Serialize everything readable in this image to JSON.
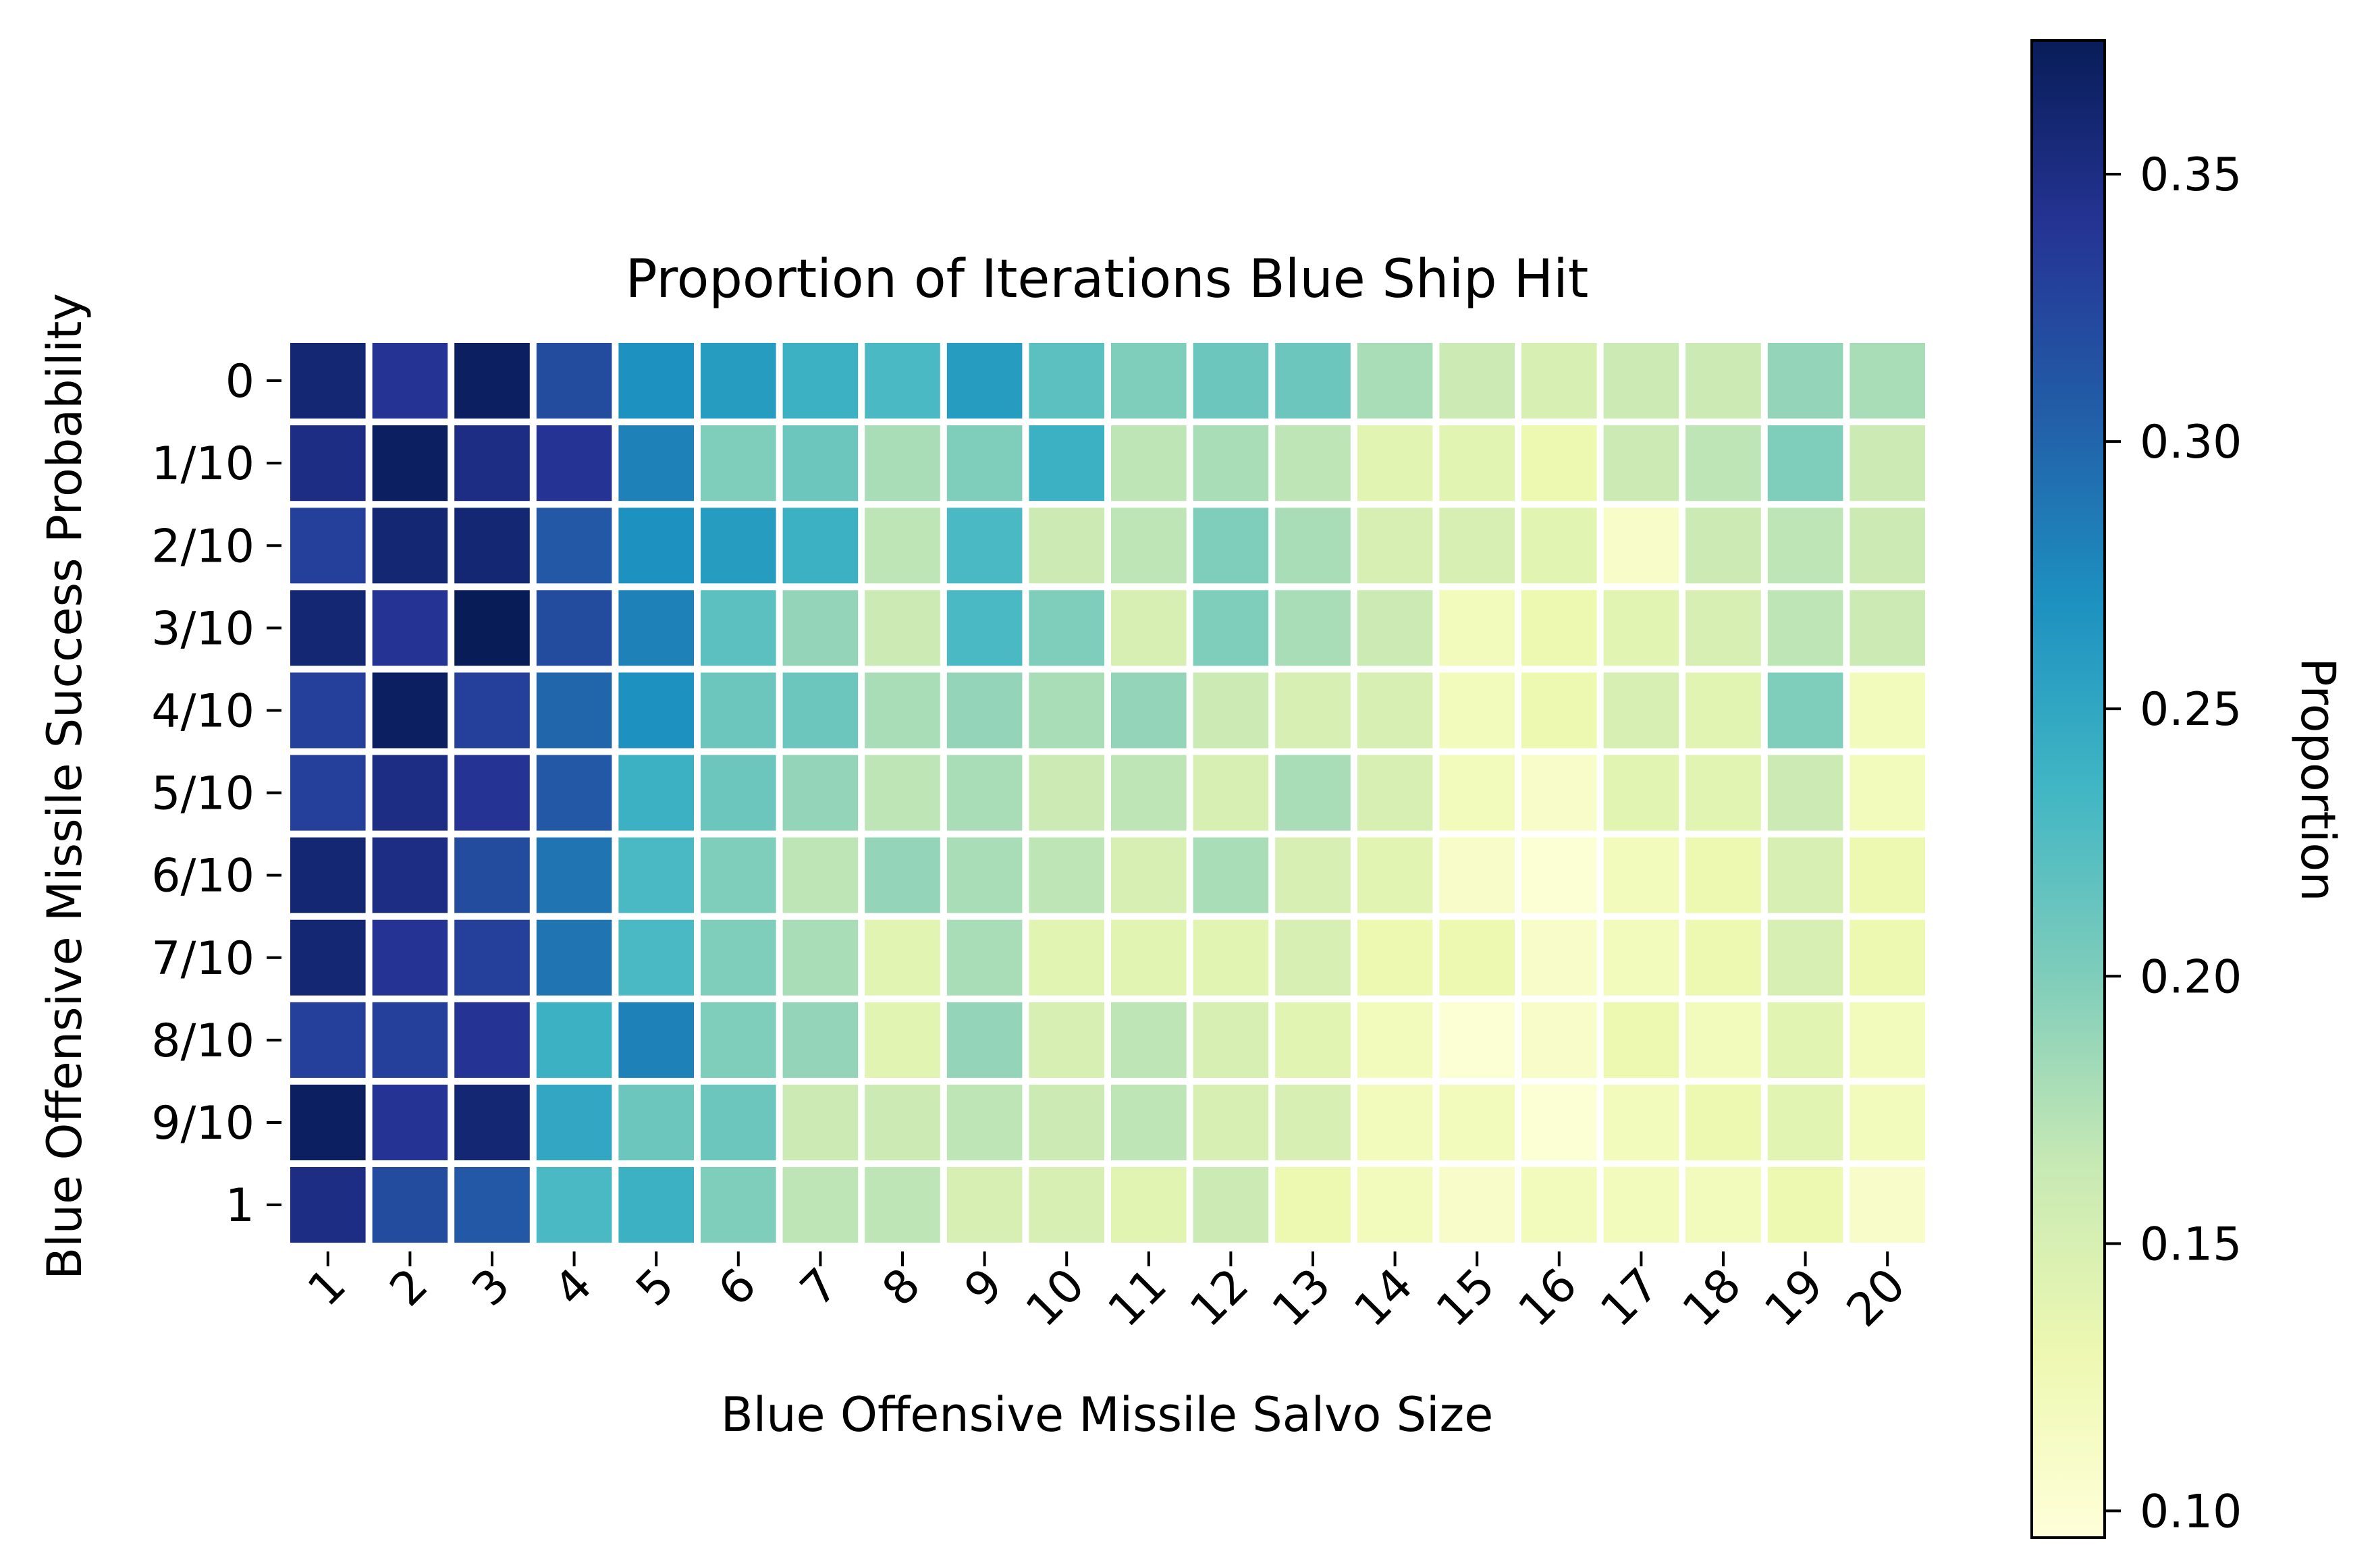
{
  "chart_data": {
    "type": "heatmap",
    "title": "Proportion of Iterations Blue Ship Hit",
    "xlabel": "Blue Offensive Missile Salvo Size",
    "ylabel": "Blue Offensive Missile Success Probability",
    "x_categories": [
      "1",
      "2",
      "3",
      "4",
      "5",
      "6",
      "7",
      "8",
      "9",
      "10",
      "11",
      "12",
      "13",
      "14",
      "15",
      "16",
      "17",
      "18",
      "19",
      "20"
    ],
    "y_categories": [
      "0",
      "1/10",
      "2/10",
      "3/10",
      "4/10",
      "5/10",
      "6/10",
      "7/10",
      "8/10",
      "9/10",
      "1"
    ],
    "values": [
      [
        0.36,
        0.34,
        0.37,
        0.32,
        0.27,
        0.26,
        0.24,
        0.23,
        0.26,
        0.22,
        0.2,
        0.21,
        0.21,
        0.18,
        0.16,
        0.15,
        0.16,
        0.16,
        0.19,
        0.18
      ],
      [
        0.35,
        0.37,
        0.35,
        0.34,
        0.28,
        0.2,
        0.21,
        0.18,
        0.2,
        0.24,
        0.17,
        0.18,
        0.17,
        0.14,
        0.14,
        0.13,
        0.16,
        0.17,
        0.2,
        0.16
      ],
      [
        0.33,
        0.36,
        0.36,
        0.31,
        0.27,
        0.26,
        0.24,
        0.17,
        0.23,
        0.16,
        0.17,
        0.2,
        0.18,
        0.15,
        0.15,
        0.14,
        0.11,
        0.16,
        0.17,
        0.16
      ],
      [
        0.36,
        0.34,
        0.38,
        0.32,
        0.28,
        0.22,
        0.19,
        0.16,
        0.23,
        0.2,
        0.15,
        0.2,
        0.18,
        0.16,
        0.12,
        0.13,
        0.14,
        0.15,
        0.17,
        0.16
      ],
      [
        0.33,
        0.37,
        0.33,
        0.3,
        0.27,
        0.21,
        0.21,
        0.18,
        0.19,
        0.18,
        0.19,
        0.16,
        0.15,
        0.15,
        0.12,
        0.13,
        0.15,
        0.14,
        0.2,
        0.12
      ],
      [
        0.33,
        0.35,
        0.34,
        0.31,
        0.24,
        0.21,
        0.19,
        0.17,
        0.18,
        0.16,
        0.17,
        0.15,
        0.18,
        0.15,
        0.12,
        0.11,
        0.14,
        0.14,
        0.16,
        0.12
      ],
      [
        0.36,
        0.35,
        0.32,
        0.29,
        0.23,
        0.2,
        0.17,
        0.19,
        0.18,
        0.17,
        0.15,
        0.18,
        0.15,
        0.14,
        0.11,
        0.1,
        0.12,
        0.13,
        0.15,
        0.13
      ],
      [
        0.36,
        0.34,
        0.33,
        0.29,
        0.23,
        0.2,
        0.18,
        0.14,
        0.18,
        0.14,
        0.14,
        0.14,
        0.15,
        0.13,
        0.13,
        0.11,
        0.12,
        0.13,
        0.15,
        0.13
      ],
      [
        0.33,
        0.33,
        0.34,
        0.24,
        0.28,
        0.2,
        0.19,
        0.14,
        0.19,
        0.15,
        0.17,
        0.15,
        0.14,
        0.12,
        0.1,
        0.11,
        0.13,
        0.12,
        0.14,
        0.12
      ],
      [
        0.37,
        0.34,
        0.36,
        0.25,
        0.21,
        0.21,
        0.16,
        0.16,
        0.17,
        0.16,
        0.17,
        0.15,
        0.15,
        0.12,
        0.12,
        0.1,
        0.12,
        0.13,
        0.14,
        0.12
      ],
      [
        0.35,
        0.32,
        0.31,
        0.23,
        0.24,
        0.2,
        0.17,
        0.17,
        0.15,
        0.15,
        0.14,
        0.16,
        0.13,
        0.12,
        0.11,
        0.12,
        0.12,
        0.12,
        0.13,
        0.11
      ]
    ],
    "colorbar": {
      "label": "Proportion",
      "range": [
        0.095,
        0.375
      ],
      "ticks": [
        0.1,
        0.15,
        0.2,
        0.25,
        0.3,
        0.35
      ],
      "tick_labels": [
        "0.10",
        "0.15",
        "0.20",
        "0.25",
        "0.30",
        "0.35"
      ],
      "colormap": "YlGnBu",
      "colormap_stops": [
        "#ffffd9",
        "#edf8b1",
        "#c7e9b4",
        "#7fcdbb",
        "#41b6c4",
        "#1d91c0",
        "#225ea8",
        "#253494",
        "#081d58"
      ]
    },
    "x_tick_rotation": 45,
    "grid": false
  }
}
